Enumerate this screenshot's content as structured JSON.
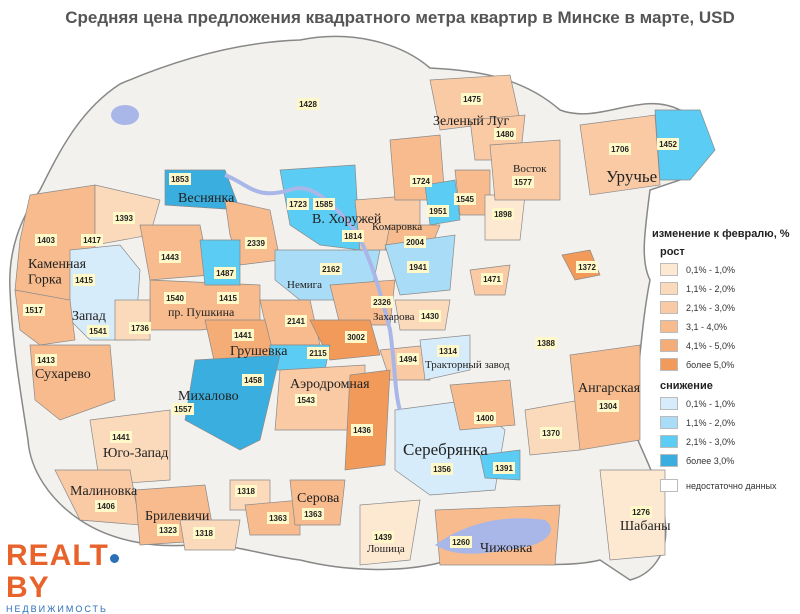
{
  "title": "Средняя цена предложения квадратного метра квартир в Минске в марте, USD",
  "colors": {
    "growth_0_1": "#fde8d2",
    "growth_1_2": "#fbd9bb",
    "growth_2_3": "#f9caa4",
    "growth_3_4": "#f7bb8d",
    "growth_4_5": "#f5ad77",
    "growth_5p": "#f19a5a",
    "drop_0_1": "#d6ecfa",
    "drop_1_2": "#a9dcf6",
    "drop_2_3": "#5bccf3",
    "drop_3p": "#3aaedf",
    "no_data": "#ffffff",
    "water": "#a9b7e8",
    "green": "#cfe6c2"
  },
  "districts": [
    {
      "name": "Зеленый Луг",
      "price": "1475",
      "class": "growth_2_3"
    },
    {
      "name": "Зеленый Луг",
      "price": "1480",
      "class": "growth_2_3"
    },
    {
      "name": "Восток",
      "price": "1577",
      "class": "growth_2_3"
    },
    {
      "name": "Уручье",
      "price": "1706",
      "class": "growth_2_3"
    },
    {
      "name": "",
      "price": "1452",
      "class": "drop_2_3"
    },
    {
      "name": "",
      "price": "1428",
      "class": "no_data"
    },
    {
      "name": "Веснянка",
      "price": "1853",
      "class": "drop_3p"
    },
    {
      "name": "В. Хоружей",
      "price": "1723",
      "class": "drop_2_3"
    },
    {
      "name": "В. Хоружей",
      "price": "1585",
      "class": "drop_3p"
    },
    {
      "name": "Комаровка",
      "price": "1814",
      "class": "growth_2_3"
    },
    {
      "name": "",
      "price": "1724",
      "class": "growth_3_4"
    },
    {
      "name": "",
      "price": "1951",
      "class": "drop_2_3"
    },
    {
      "name": "",
      "price": "1545",
      "class": "growth_3_4"
    },
    {
      "name": "",
      "price": "1898",
      "class": "growth_0_1"
    },
    {
      "name": "",
      "price": "2004",
      "class": "growth_3_4"
    },
    {
      "name": "",
      "price": "1393",
      "class": "growth_1_2"
    },
    {
      "name": "Каменная Горка",
      "price": "1403",
      "class": "growth_3_4"
    },
    {
      "name": "",
      "price": "1417",
      "class": "growth_2_3"
    },
    {
      "name": "",
      "price": "1443",
      "class": "growth_3_4"
    },
    {
      "name": "",
      "price": "2339",
      "class": "growth_3_4"
    },
    {
      "name": "",
      "price": "1487",
      "class": "drop_2_3"
    },
    {
      "name": "Немига",
      "price": "2162",
      "class": "drop_1_2"
    },
    {
      "name": "",
      "price": "1941",
      "class": "drop_1_2"
    },
    {
      "name": "",
      "price": "1372",
      "class": "growth_5p"
    },
    {
      "name": "",
      "price": "1471",
      "class": "growth_2_3"
    },
    {
      "name": "Запад",
      "price": "1415",
      "class": "drop_0_1"
    },
    {
      "name": "",
      "price": "1517",
      "class": "growth_3_4"
    },
    {
      "name": "Запад",
      "price": "1541",
      "class": "drop_0_1"
    },
    {
      "name": "",
      "price": "1540",
      "class": "growth_3_4"
    },
    {
      "name": "пр. Пушкина",
      "price": "1415",
      "class": "growth_3_4"
    },
    {
      "name": "",
      "price": "1736",
      "class": "growth_1_2"
    },
    {
      "name": "Захарова",
      "price": "2326",
      "class": "growth_3_4"
    },
    {
      "name": "",
      "price": "1430",
      "class": "growth_1_2"
    },
    {
      "name": "",
      "price": "2141",
      "class": "growth_3_4"
    },
    {
      "name": "Грушевка",
      "price": "1441",
      "class": "growth_4_5"
    },
    {
      "name": "",
      "price": "3002",
      "class": "growth_5p"
    },
    {
      "name": "",
      "price": "1388",
      "class": "no_data"
    },
    {
      "name": "Тракторный завод",
      "price": "1314",
      "class": "drop_0_1"
    },
    {
      "name": "Сухарево",
      "price": "1413",
      "class": "growth_3_4"
    },
    {
      "name": "",
      "price": "2115",
      "class": "drop_2_3"
    },
    {
      "name": "",
      "price": "1494",
      "class": "growth_2_3"
    },
    {
      "name": "Михалово",
      "price": "1458",
      "class": "drop_3p"
    },
    {
      "name": "Аэродромная",
      "price": "1543",
      "class": "growth_2_3"
    },
    {
      "name": "Ангарская",
      "price": "1304",
      "class": "growth_3_4"
    },
    {
      "name": "",
      "price": "1557",
      "class": "no_data"
    },
    {
      "name": "",
      "price": "1400",
      "class": "growth_3_4"
    },
    {
      "name": "",
      "price": "1370",
      "class": "growth_1_2"
    },
    {
      "name": "Юго-Запад",
      "price": "1441",
      "class": "growth_1_2"
    },
    {
      "name": "",
      "price": "1436",
      "class": "growth_5p"
    },
    {
      "name": "Серебрянка",
      "price": "1356",
      "class": "drop_0_1"
    },
    {
      "name": "",
      "price": "1391",
      "class": "drop_2_3"
    },
    {
      "name": "Малиновка",
      "price": "1406",
      "class": "growth_2_3"
    },
    {
      "name": "",
      "price": "1318",
      "class": "growth_1_2"
    },
    {
      "name": "Серова",
      "price": "1363",
      "class": "growth_3_4"
    },
    {
      "name": "",
      "price": "1363",
      "class": "growth_3_4"
    },
    {
      "name": "Брилевичи",
      "price": "1323",
      "class": "growth_3_4"
    },
    {
      "name": "",
      "price": "1318",
      "class": "growth_1_2"
    },
    {
      "name": "Шабаны",
      "price": "1276",
      "class": "growth_0_1"
    },
    {
      "name": "Лошица",
      "price": "1439",
      "class": "growth_0_1"
    },
    {
      "name": "Чижовка",
      "price": "1260",
      "class": "growth_3_4"
    }
  ],
  "legend": {
    "title": "изменение к февралю, %",
    "growth_label": "рост",
    "drop_label": "снижение",
    "growth_items": [
      "0,1% - 1,0%",
      "1,1% - 2,0%",
      "2,1% - 3,0%",
      "3,1 - 4,0%",
      "4,1% - 5,0%",
      "более 5,0%"
    ],
    "drop_items": [
      "0,1% - 1,0%",
      "1,1% - 2,0%",
      "2,1% - 3,0%",
      "более 3,0%"
    ],
    "no_data": "недостаточно данных"
  },
  "logo": {
    "main_left": "REALT",
    "main_right": "BY",
    "sub": "НЕДВИЖИМОСТЬ"
  }
}
